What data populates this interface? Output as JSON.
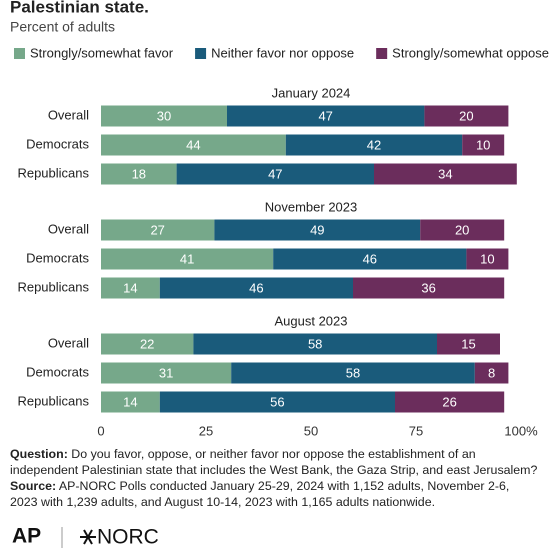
{
  "chart_data": {
    "type": "bar",
    "orientation": "horizontal",
    "stacked": true,
    "title": "Palestinian state.",
    "subtitle": "Percent of adults",
    "series": [
      {
        "name": "Strongly/somewhat favor",
        "color": "#76a88a"
      },
      {
        "name": "Neither favor nor oppose",
        "color": "#1a5b7b"
      },
      {
        "name": "Strongly/somewhat oppose",
        "color": "#6b2d5c"
      }
    ],
    "panels": [
      {
        "title": "January 2024",
        "categories": [
          "Overall",
          "Democrats",
          "Republicans"
        ],
        "values": [
          [
            30,
            44,
            18
          ],
          [
            47,
            42,
            47
          ],
          [
            20,
            10,
            34
          ]
        ]
      },
      {
        "title": "November 2023",
        "categories": [
          "Overall",
          "Democrats",
          "Republicans"
        ],
        "values": [
          [
            27,
            41,
            14
          ],
          [
            49,
            46,
            46
          ],
          [
            20,
            10,
            36
          ]
        ]
      },
      {
        "title": "August 2023",
        "categories": [
          "Overall",
          "Democrats",
          "Republicans"
        ],
        "values": [
          [
            22,
            31,
            14
          ],
          [
            58,
            58,
            56
          ],
          [
            15,
            8,
            26
          ]
        ]
      }
    ],
    "xlim": [
      0,
      100
    ],
    "xticks": [
      0,
      25,
      50,
      75,
      {
        "value": 100,
        "label": "100%"
      }
    ]
  },
  "footer": {
    "question_label": "Question:",
    "question": "Do you favor, oppose, or neither favor nor oppose the establishment of an independent Palestinian state that includes the West Bank, the Gaza Strip, and east Jerusalem?",
    "source_label": "Source:",
    "source": "AP-NORC Polls conducted January 25-29, 2024 with 1,152 adults, November 2-6, 2023 with 1,239 adults, and August 10-14, 2023 with 1,165 adults nationwide."
  },
  "logos": [
    "AP",
    "NORC"
  ]
}
